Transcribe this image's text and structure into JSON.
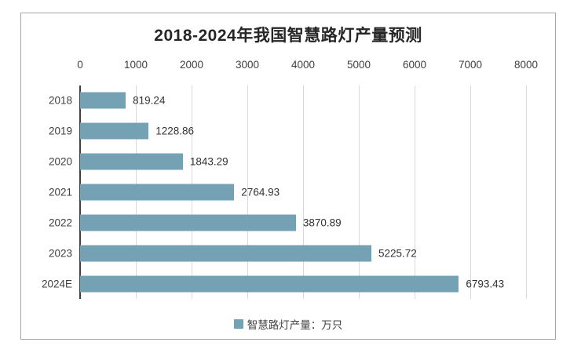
{
  "title": "2018-2024年我国智慧路灯产量预测",
  "legend": {
    "label": "智慧路灯产量：万只",
    "marker_color": "#74a2b4"
  },
  "colors": {
    "bar": "#74a2b4",
    "gridline": "#d9d9d9",
    "axis_line": "#404040",
    "chart_border": "#a6a6a6",
    "title_text": "#262626",
    "label_text": "#404040"
  },
  "chart_data": {
    "type": "bar",
    "orientation": "horizontal",
    "title": "2018-2024年我国智慧路灯产量预测",
    "categories": [
      "2018",
      "2019",
      "2020",
      "2021",
      "2022",
      "2023",
      "2024E"
    ],
    "values": [
      819.24,
      1228.86,
      1843.29,
      2764.93,
      3870.89,
      5225.72,
      6793.43
    ],
    "value_labels": [
      "819.24",
      "1228.86",
      "1843.29",
      "2764.93",
      "3870.89",
      "5225.72",
      "6793.43"
    ],
    "series_name": "智慧路灯产量：万只",
    "x_ticks": [
      0,
      1000,
      2000,
      3000,
      4000,
      5000,
      6000,
      7000,
      8000
    ],
    "x_tick_labels": [
      "0",
      "1000",
      "2000",
      "3000",
      "4000",
      "5000",
      "6000",
      "7000",
      "8000"
    ],
    "xlim": [
      0,
      8000
    ],
    "xlabel": "",
    "ylabel": "",
    "grid": true,
    "axis_position": "top",
    "legend_position": "bottom"
  }
}
